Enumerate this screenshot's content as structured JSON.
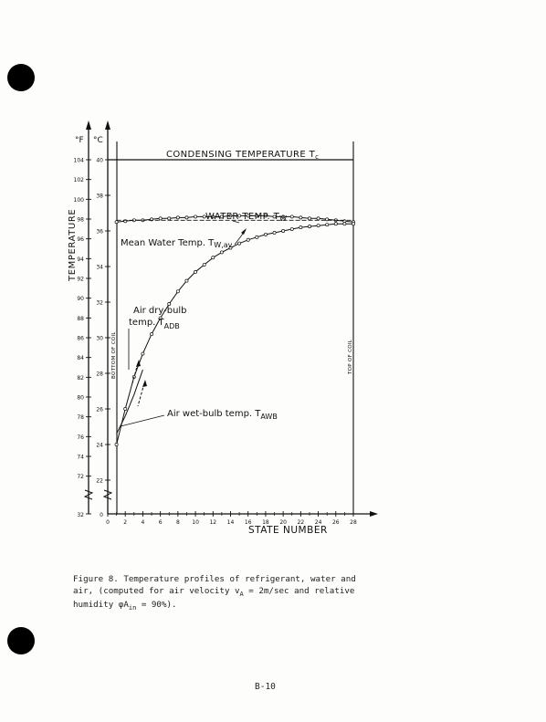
{
  "chart_data": {
    "type": "line",
    "xlabel": "STATE NUMBER",
    "ylabel": "TEMPERATURE",
    "unit_f": "°F",
    "unit_c": "°C",
    "xlim": [
      0,
      28
    ],
    "x_ticks": [
      0,
      2,
      4,
      6,
      8,
      10,
      12,
      14,
      16,
      18,
      20,
      22,
      24,
      26,
      28
    ],
    "f_ticks": [
      104,
      102,
      100,
      98,
      96,
      94,
      92,
      90,
      88,
      86,
      84,
      82,
      80,
      78,
      76,
      74,
      72
    ],
    "f_bottom_label": "32",
    "c_ticks": [
      40,
      38,
      36,
      34,
      32,
      30,
      28,
      26,
      24,
      22
    ],
    "c_bottom_label": "0",
    "series": [
      {
        "name": "CONDENSING TEMPERATURE Tc",
        "x": [
          0,
          28
        ],
        "y": [
          40,
          40
        ]
      },
      {
        "name": "WATER TEMP. Tw",
        "x": [
          1,
          2,
          3,
          4,
          5,
          6,
          7,
          8,
          9,
          10,
          11,
          12,
          13,
          14,
          15,
          16,
          17,
          18,
          19,
          20,
          21,
          22,
          23,
          24,
          25,
          26,
          27,
          28
        ],
        "y": [
          36.5,
          36.55,
          36.6,
          36.6,
          36.65,
          36.7,
          36.7,
          36.75,
          36.75,
          36.8,
          36.8,
          36.8,
          36.8,
          36.85,
          36.85,
          36.85,
          36.85,
          36.85,
          36.8,
          36.8,
          36.8,
          36.75,
          36.7,
          36.7,
          36.65,
          36.6,
          36.55,
          36.5
        ]
      },
      {
        "name": "Mean Water Temp. Tw,av.",
        "x": [
          1,
          28
        ],
        "y": [
          36.6,
          36.6
        ]
      },
      {
        "name": "Air dry-bulb temp. TADB",
        "x": [
          1,
          2,
          3,
          4,
          5,
          6,
          7,
          8,
          9,
          10,
          11,
          12,
          13,
          14,
          15,
          16,
          17,
          18,
          19,
          20,
          21,
          22,
          23,
          24,
          25,
          26,
          27,
          28
        ],
        "y": [
          24.0,
          26.0,
          27.8,
          29.1,
          30.2,
          31.1,
          31.9,
          32.6,
          33.2,
          33.7,
          34.1,
          34.5,
          34.8,
          35.05,
          35.3,
          35.5,
          35.65,
          35.8,
          35.9,
          36.0,
          36.1,
          36.2,
          36.25,
          36.3,
          36.35,
          36.4,
          36.4,
          36.4
        ]
      },
      {
        "name": "Air wet-bulb temp. TAWB",
        "x": [
          1,
          2,
          3,
          4
        ],
        "y": [
          24.6,
          25.6,
          26.8,
          28.2
        ]
      }
    ],
    "annotations": [
      "CONDENSING TEMPERATURE Tc",
      "WATER TEMP. Tw",
      "Mean Water Temp. Tw,av.",
      "Air dry-bulb temp. TADB",
      "Air wet-bulb temp. TAWB",
      "BOTTOM OF COIL",
      "TOP OF COIL"
    ]
  },
  "labels": {
    "cond": "CONDENSING  TEMPERATURE  T",
    "cond_sub": "c",
    "water": "WATER  TEMP.  T",
    "water_sub": "W",
    "mean": "Mean Water Temp. T",
    "mean_sub": "W,av.",
    "adb_line1": "Air dry-bulb",
    "adb_line2": "temp. T",
    "adb_sub": "ADB",
    "awb": "Air wet-bulb temp. T",
    "awb_sub": "AWB",
    "bottom_coil": "BOTTOM OF COIL",
    "top_coil": "TOP OF COIL"
  },
  "caption": {
    "line1": "Figure 8.  Temperature profiles of refrigerant, water and",
    "line2a": "air, (computed for air velocity v",
    "line2_sub": "A",
    "line2b": " = 2m/sec and relative",
    "line3a": "humidity φA",
    "line3_sub": "in",
    "line3b": " = 90%)."
  },
  "page_number": "B-10"
}
